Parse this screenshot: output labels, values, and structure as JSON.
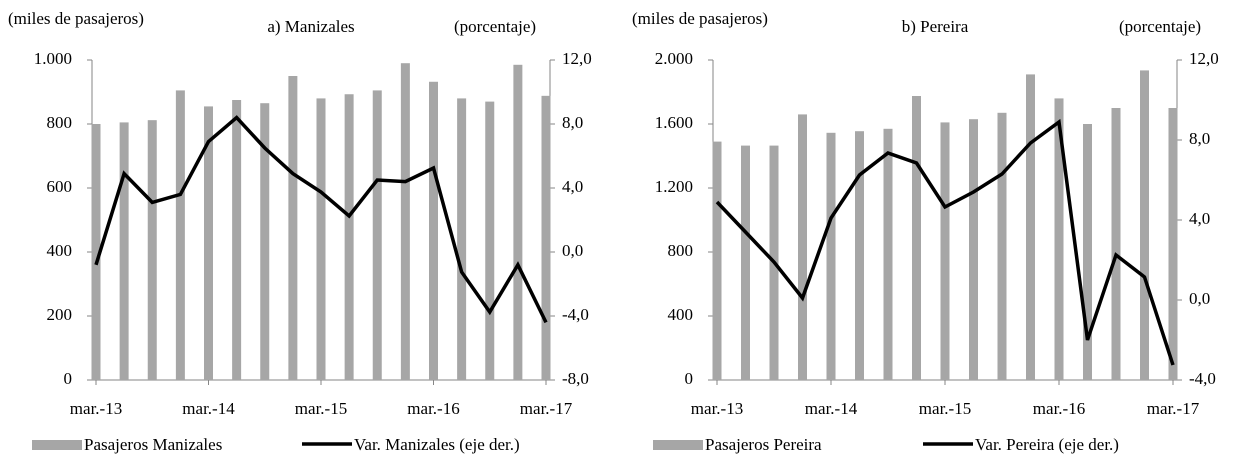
{
  "chart_data": [
    {
      "type": "bar",
      "title": "a) Manizales",
      "y_label": "(miles de pasajeros)",
      "y2_label": "(porcentaje)",
      "categories": [
        "mar.-13",
        null,
        null,
        null,
        "mar.-14",
        null,
        null,
        null,
        "mar.-15",
        null,
        null,
        null,
        "mar.-16",
        null,
        null,
        null,
        "mar.-17"
      ],
      "series": [
        {
          "name": "Pasajeros Manizales",
          "color": "#a6a6a6",
          "values": [
            800,
            805,
            812,
            905,
            855,
            875,
            865,
            950,
            880,
            893,
            905,
            990,
            932,
            880,
            870,
            985,
            888
          ]
        },
        {
          "name": "Var. Manizales (eje der.)",
          "color": "#000000",
          "axis": "y2",
          "type": "line",
          "values": [
            -0.8,
            4.9,
            3.1,
            3.6,
            6.9,
            8.4,
            6.5,
            4.9,
            3.75,
            2.25,
            4.5,
            4.4,
            5.25,
            -1.25,
            -3.75,
            -0.8,
            -4.4
          ]
        }
      ],
      "ylim": [
        0,
        1000
      ],
      "yticks": [
        0,
        200,
        400,
        600,
        800,
        {
          "value": 1000,
          "label": "1.000"
        }
      ],
      "y2lim": [
        -8,
        12
      ],
      "y2ticks": [
        {
          "value": -8,
          "label": "-8,0"
        },
        {
          "value": -4,
          "label": "-4,0"
        },
        {
          "value": 0,
          "label": "0,0"
        },
        {
          "value": 4,
          "label": "4,0"
        },
        {
          "value": 8,
          "label": "8,0"
        },
        {
          "value": 12,
          "label": "12,0"
        }
      ]
    },
    {
      "type": "bar",
      "title": "b) Pereira",
      "y_label": "(miles de pasajeros)",
      "y2_label": "(porcentaje)",
      "categories": [
        "mar.-13",
        null,
        null,
        null,
        "mar.-14",
        null,
        null,
        null,
        "mar.-15",
        null,
        null,
        null,
        "mar.-16",
        null,
        null,
        null,
        "mar.-17"
      ],
      "series": [
        {
          "name": "Pasajeros Pereira",
          "color": "#a6a6a6",
          "values": [
            1490,
            1465,
            1465,
            1660,
            1545,
            1555,
            1570,
            1775,
            1610,
            1630,
            1670,
            1910,
            1760,
            1600,
            1700,
            1935,
            1700
          ]
        },
        {
          "name": "Var. Pereira (eje der.)",
          "color": "#000000",
          "axis": "y2",
          "type": "line",
          "values": [
            4.9,
            3.4,
            1.9,
            0.1,
            4.1,
            6.25,
            7.35,
            6.85,
            4.65,
            5.4,
            6.3,
            7.85,
            8.9,
            -2.0,
            2.25,
            1.15,
            -3.25
          ]
        }
      ],
      "ylim": [
        0,
        2000
      ],
      "yticks": [
        0,
        400,
        800,
        {
          "value": 1200,
          "label": "1.200"
        },
        {
          "value": 1600,
          "label": "1.600"
        },
        {
          "value": 2000,
          "label": "2.000"
        }
      ],
      "y2lim": [
        -4,
        12
      ],
      "y2ticks": [
        {
          "value": -4,
          "label": "-4,0"
        },
        {
          "value": 0,
          "label": "0,0"
        },
        {
          "value": 4,
          "label": "4,0"
        },
        {
          "value": 8,
          "label": "8,0"
        },
        {
          "value": 12,
          "label": "12,0"
        }
      ]
    }
  ]
}
